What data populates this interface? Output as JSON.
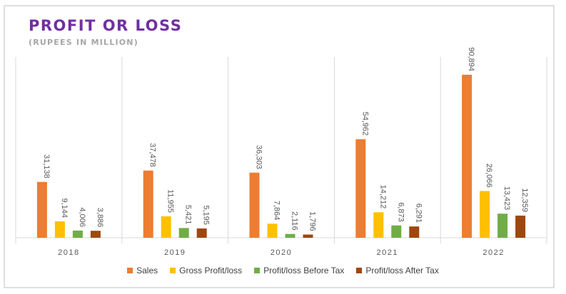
{
  "colors": {
    "sales": "#ed7d31",
    "gross": "#ffc000",
    "before_tax": "#70ad47",
    "after_tax": "#9e480e",
    "title": "#7030a0",
    "subtitle": "#a6a6a6"
  },
  "chart_data": {
    "type": "bar",
    "title": "PROFIT OR LOSS",
    "subtitle": "(RUPEES IN MILLION)",
    "categories": [
      "2018",
      "2019",
      "2020",
      "2021",
      "2022"
    ],
    "series": [
      {
        "name": "Sales",
        "values": [
          31138,
          37478,
          36303,
          54962,
          90894
        ]
      },
      {
        "name": "Gross Profit/loss",
        "values": [
          9144,
          11955,
          7864,
          14212,
          26066
        ]
      },
      {
        "name": "Profit/loss Before Tax",
        "values": [
          4006,
          5421,
          2116,
          6873,
          13423
        ]
      },
      {
        "name": "Profit/loss After Tax",
        "values": [
          3886,
          5195,
          1796,
          6291,
          12359
        ]
      }
    ],
    "data_labels": [
      [
        "31,138",
        "37,478",
        "36,303",
        "54,962",
        "90,894"
      ],
      [
        "9,144",
        "11,955",
        "7,864",
        "14,212",
        "26,066"
      ],
      [
        "4,006",
        "5,421",
        "2,116",
        "6,873",
        "13,423"
      ],
      [
        "3,886",
        "5,195",
        "1,796",
        "6,291",
        "12,359"
      ]
    ],
    "xlabel": "",
    "ylabel": "",
    "ylim": [
      0,
      90894
    ],
    "legend": "bottom",
    "grid": "vertical separators"
  }
}
